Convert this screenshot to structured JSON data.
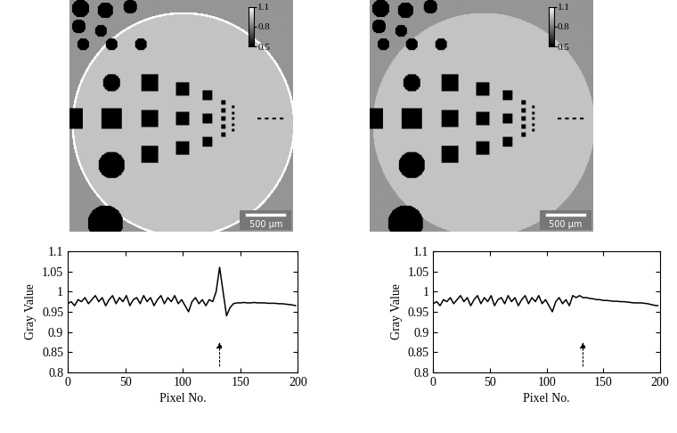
{
  "chart_data": [
    {
      "type": "line",
      "x_label": "Pixel No.",
      "y_label": "Gray Value",
      "color": "#000000",
      "x": [
        0,
        3,
        6,
        9,
        12,
        15,
        18,
        21,
        24,
        27,
        30,
        33,
        36,
        39,
        42,
        45,
        48,
        51,
        54,
        57,
        60,
        63,
        66,
        69,
        72,
        75,
        78,
        81,
        84,
        87,
        90,
        93,
        96,
        99,
        102,
        105,
        108,
        111,
        114,
        117,
        120,
        123,
        126,
        129,
        132,
        135,
        138,
        141,
        144,
        147,
        150,
        153,
        156,
        159,
        162,
        165,
        168,
        171,
        174,
        177,
        180,
        183,
        186,
        189,
        192,
        195,
        198
      ],
      "values": [
        0.97,
        0.975,
        0.965,
        0.98,
        0.975,
        0.985,
        0.97,
        0.98,
        0.99,
        0.975,
        0.985,
        0.965,
        0.98,
        0.99,
        0.97,
        0.985,
        0.975,
        0.99,
        0.965,
        0.98,
        0.985,
        0.97,
        0.99,
        0.975,
        0.985,
        0.965,
        0.98,
        0.99,
        0.97,
        0.985,
        0.975,
        0.99,
        0.97,
        0.98,
        0.965,
        0.95,
        0.975,
        0.985,
        0.97,
        0.98,
        0.965,
        0.98,
        0.975,
        1.0,
        1.06,
        1.0,
        0.94,
        0.96,
        0.97,
        0.972,
        0.972,
        0.973,
        0.972,
        0.972,
        0.973,
        0.972,
        0.972,
        0.972,
        0.971,
        0.971,
        0.971,
        0.97,
        0.97,
        0.969,
        0.968,
        0.967,
        0.965
      ],
      "xlim": [
        0,
        200
      ],
      "ylim": [
        0.8,
        1.1
      ],
      "xticks": [
        0,
        50,
        100,
        150,
        200
      ],
      "yticks": [
        0.8,
        0.85,
        0.9,
        0.95,
        1,
        1.05,
        1.1
      ],
      "arrow_x": 132
    },
    {
      "type": "line",
      "x_label": "Pixel No.",
      "y_label": "Gray Value",
      "color": "#000000",
      "x": [
        0,
        3,
        6,
        9,
        12,
        15,
        18,
        21,
        24,
        27,
        30,
        33,
        36,
        39,
        42,
        45,
        48,
        51,
        54,
        57,
        60,
        63,
        66,
        69,
        72,
        75,
        78,
        81,
        84,
        87,
        90,
        93,
        96,
        99,
        102,
        105,
        108,
        111,
        114,
        117,
        120,
        123,
        126,
        129,
        132,
        135,
        138,
        141,
        144,
        147,
        150,
        153,
        156,
        159,
        162,
        165,
        168,
        171,
        174,
        177,
        180,
        183,
        186,
        189,
        192,
        195,
        198
      ],
      "values": [
        0.97,
        0.975,
        0.965,
        0.98,
        0.975,
        0.985,
        0.97,
        0.98,
        0.99,
        0.975,
        0.985,
        0.965,
        0.98,
        0.99,
        0.97,
        0.985,
        0.975,
        0.99,
        0.965,
        0.98,
        0.985,
        0.97,
        0.99,
        0.975,
        0.985,
        0.965,
        0.98,
        0.99,
        0.97,
        0.985,
        0.975,
        0.99,
        0.97,
        0.98,
        0.965,
        0.95,
        0.975,
        0.985,
        0.97,
        0.98,
        0.965,
        0.99,
        0.985,
        0.99,
        0.985,
        0.985,
        0.983,
        0.982,
        0.98,
        0.98,
        0.978,
        0.978,
        0.977,
        0.976,
        0.976,
        0.975,
        0.975,
        0.974,
        0.973,
        0.972,
        0.972,
        0.972,
        0.971,
        0.97,
        0.968,
        0.966,
        0.965
      ],
      "xlim": [
        0,
        200
      ],
      "ylim": [
        0.8,
        1.1
      ],
      "xticks": [
        0,
        50,
        100,
        150,
        200
      ],
      "yticks": [
        0.8,
        0.85,
        0.9,
        0.95,
        1,
        1.05,
        1.1
      ],
      "arrow_x": 132
    }
  ],
  "images": [
    {
      "colorbar_range": [
        0.5,
        1.1
      ],
      "colorbar_ticks": [
        0.5,
        0.8,
        1.1
      ],
      "scale_bar": "500 µm",
      "ring": true
    },
    {
      "colorbar_range": [
        0.5,
        1.1
      ],
      "colorbar_ticks": [
        0.5,
        0.8,
        1.1
      ],
      "scale_bar": "500 µm",
      "ring": false
    }
  ]
}
